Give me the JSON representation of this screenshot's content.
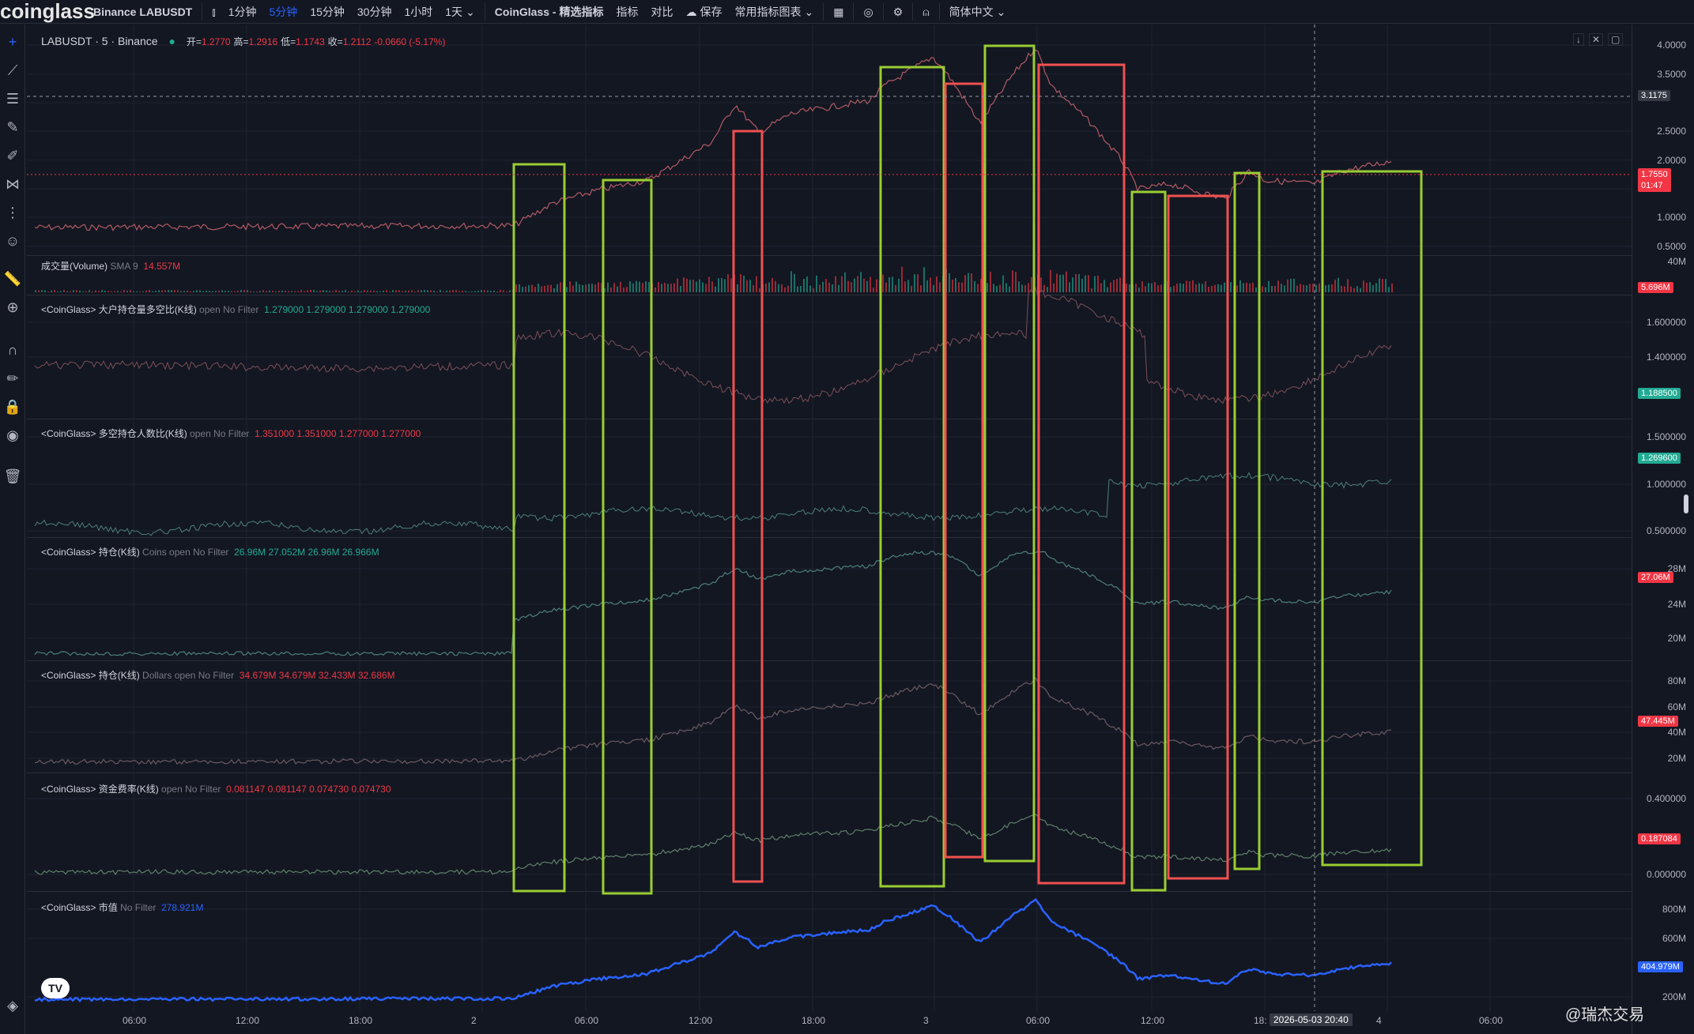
{
  "topbar": {
    "logo": "coinglass",
    "exchange_symbol": "Binance LABUSDT",
    "intervals": [
      "1分钟",
      "5分钟",
      "15分钟",
      "30分钟",
      "1小时",
      "1天"
    ],
    "active_interval": "5分钟",
    "indicators_menu": "CoinGlass - 精选指标",
    "indicator": "指标",
    "compare": "对比",
    "save": "保存",
    "common_charts": "常用指标图表",
    "language": "简体中文"
  },
  "legend": {
    "symbol": "LABUSDT · 5 · Binance",
    "open_lbl": "开=",
    "open": "1.2770",
    "high_lbl": "高=",
    "high": "1.2916",
    "low_lbl": "低=",
    "low": "1.1743",
    "close_lbl": "收=",
    "close": "1.2112",
    "change": "-0.0660 (-5.17%)"
  },
  "panes": {
    "volume": {
      "title": "成交量(Volume)",
      "sub": "SMA 9",
      "value": "14.557M"
    },
    "ls_top": {
      "title": "<CoinGlass> 大户持仓量多空比(K线)",
      "sub": "open No Filter",
      "values": "1.279000  1.279000  1.279000  1.279000"
    },
    "ls_accounts": {
      "title": "<CoinGlass> 多空持仓人数比(K线)",
      "sub": "open No Filter",
      "values": "1.351000  1.351000  1.277000  1.277000"
    },
    "oi_coins": {
      "title": "<CoinGlass> 持仓(K线)",
      "sub": "Coins open No Filter",
      "values": "26.96M  27.052M  26.96M  26.966M"
    },
    "oi_dollars": {
      "title": "<CoinGlass> 持仓(K线)",
      "sub": "Dollars open No Filter",
      "values": "34.679M  34.679M  32.433M  32.686M"
    },
    "funding": {
      "title": "<CoinGlass> 资金费率(K线)",
      "sub": "open No Filter",
      "values": "0.081147  0.081147  0.074730  0.074730"
    },
    "mcap": {
      "title": "<CoinGlass> 市值",
      "sub": "No Filter",
      "value": "278.921M"
    }
  },
  "axis": {
    "price": [
      "4.0000",
      "3.5000",
      "3.0000",
      "2.5000",
      "2.0000",
      "1.5000",
      "1.0000",
      "0.5000"
    ],
    "crosshair_price": "3.1175",
    "last_price": "1.7550",
    "last_price_timer": "01:47",
    "vol": [
      "40M"
    ],
    "vol_badge": "5.696M",
    "ls_top": [
      "1.600000",
      "1.400000"
    ],
    "ls_top_badge": "1.188500",
    "ls_acc": [
      "1.500000",
      "1.000000",
      "0.500000"
    ],
    "ls_acc_badge": "1.269600",
    "oi_coins": [
      "28M",
      "24M",
      "20M"
    ],
    "oi_coins_badge": "27.06M",
    "oi_dollars": [
      "80M",
      "60M",
      "40M",
      "20M"
    ],
    "oi_dollars_badge": "47.445M",
    "funding": [
      "0.400000",
      "0.000000"
    ],
    "funding_badge": "0.187084",
    "mcap": [
      "800M",
      "600M",
      "200M"
    ],
    "mcap_badge": "404.979M"
  },
  "time_axis": [
    "06:00",
    "12:00",
    "18:00",
    "2",
    "06:00",
    "12:00",
    "18:00",
    "3",
    "06:00",
    "12:00",
    "18:",
    "4",
    "06:00"
  ],
  "crosshair_time": "2026-05-03  20:40",
  "watermark": "@瑞杰交易",
  "colors": {
    "green_box": "#9ACD32",
    "red_box": "#F05050",
    "up": "#22ab94",
    "down": "#f23645",
    "mcap_line": "#2962ff"
  }
}
